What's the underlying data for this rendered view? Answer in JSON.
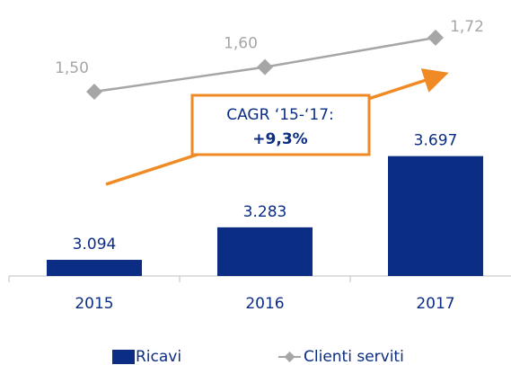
{
  "chart_data": {
    "type": "bar_line",
    "categories": [
      "2015",
      "2016",
      "2017"
    ],
    "series": [
      {
        "name": "Ricavi",
        "type": "bar",
        "color": "#0b2d83",
        "values": [
          3094,
          3283,
          3697
        ],
        "value_labels": [
          "3.094",
          "3.283",
          "3.697"
        ]
      },
      {
        "name": "Clienti serviti",
        "type": "line",
        "axis": "y2",
        "color": "#a6a6a6",
        "values": [
          1.5,
          1.6,
          1.72
        ],
        "value_labels": [
          "1,50",
          "1,60",
          "1,72"
        ]
      }
    ],
    "ylim": [
      3000,
      4500
    ],
    "y2lim": [
      0.75,
      1.8
    ],
    "annotation": [
      "CAGR ‘15-‘17:",
      "+9,3%"
    ],
    "legend": "bottom"
  }
}
